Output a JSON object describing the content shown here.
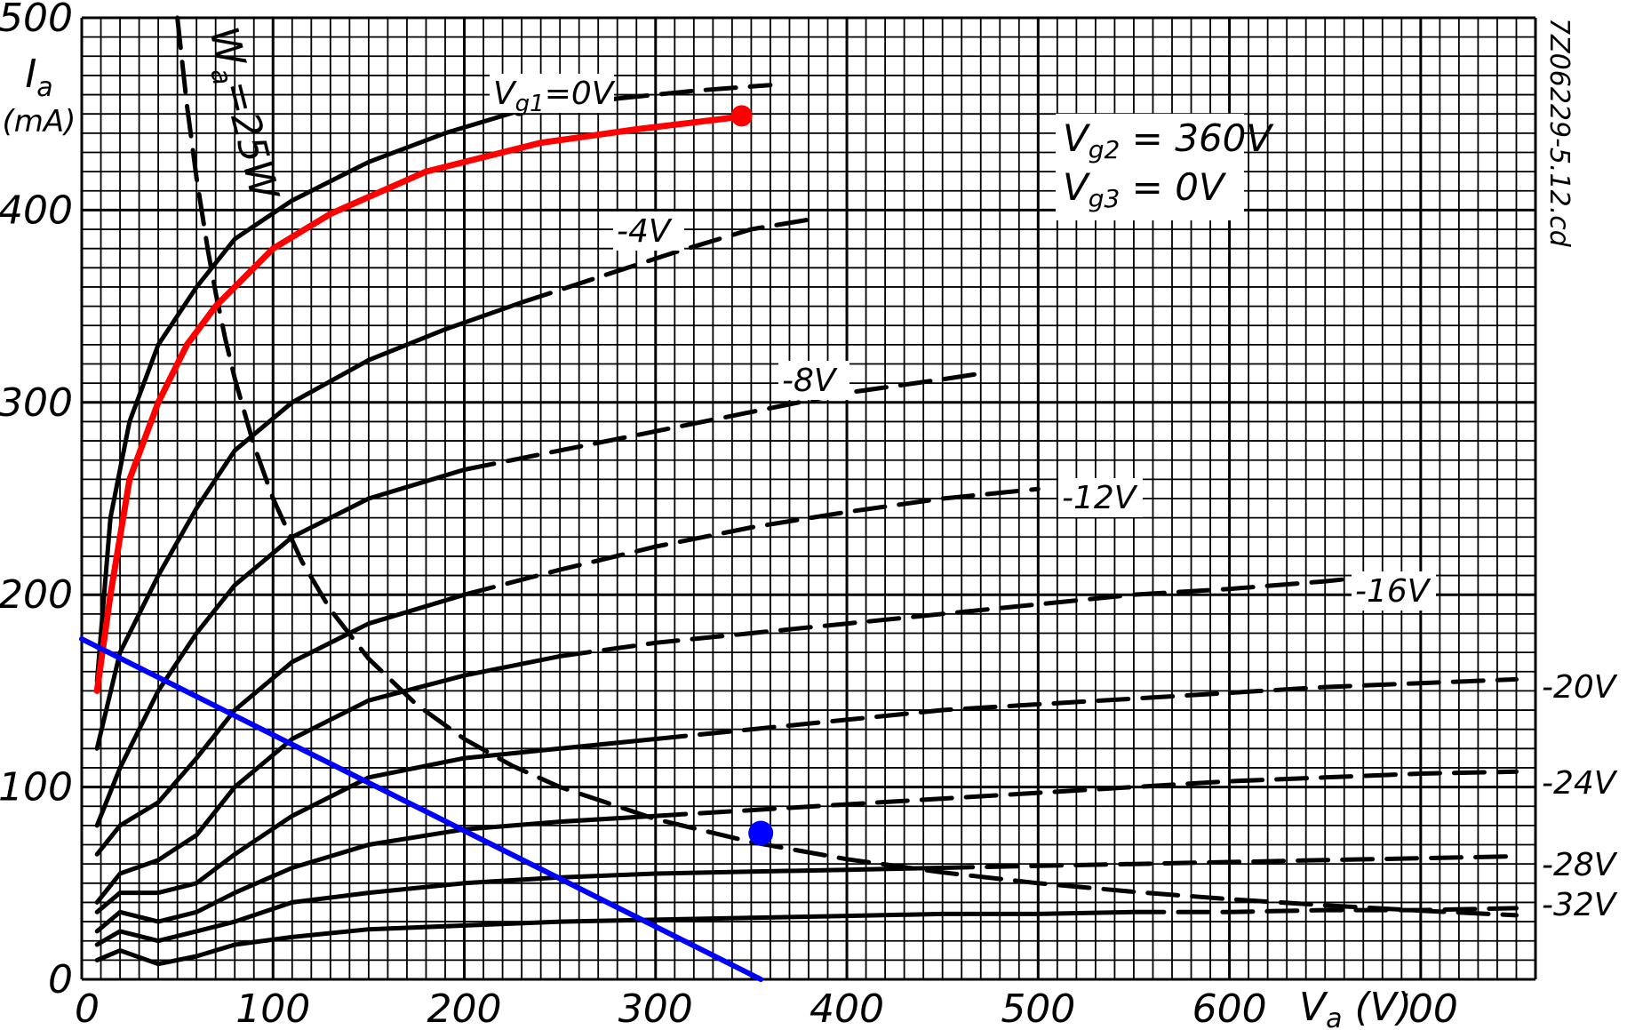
{
  "chart_data": {
    "type": "line",
    "title": "",
    "ylabel": "I_a (mA)",
    "ylabel_sym": "I",
    "ylabel_sub": "a",
    "ylabel_unit": "(mA)",
    "xlabel": "V_a (V)",
    "xlabel_sym": "V",
    "xlabel_sub": "a",
    "xlabel_unit": "(V)",
    "xlim": [
      0,
      760
    ],
    "ylim": [
      0,
      500
    ],
    "x_ticks": [
      "0",
      "100",
      "200",
      "300",
      "400",
      "500",
      "600",
      "700"
    ],
    "y_ticks": [
      "0",
      "100",
      "200",
      "300",
      "400",
      "500"
    ],
    "grid": true,
    "code": "7Z06229-5.12.cd",
    "conditions": [
      "V_g2 = 360V",
      "V_g3 = 0V"
    ],
    "series": [
      {
        "name": "V_g1=0V",
        "label": "V_g1=0V",
        "dash_from": 280,
        "x": [
          8,
          15,
          25,
          40,
          60,
          80,
          110,
          150,
          190,
          230,
          260,
          280,
          320,
          360
        ],
        "y": [
          155,
          240,
          290,
          330,
          360,
          385,
          405,
          425,
          440,
          452,
          455,
          458,
          462,
          465
        ]
      },
      {
        "name": "-4V",
        "label": "-4V",
        "dash_from": 230,
        "x": [
          8,
          20,
          40,
          60,
          80,
          110,
          150,
          190,
          230,
          270,
          310,
          350,
          380
        ],
        "y": [
          120,
          170,
          210,
          245,
          275,
          300,
          322,
          338,
          352,
          365,
          378,
          390,
          395
        ]
      },
      {
        "name": "-8V",
        "label": "-8V",
        "dash_from": 200,
        "x": [
          8,
          20,
          40,
          60,
          80,
          110,
          150,
          200,
          250,
          300,
          350,
          400,
          450,
          470
        ],
        "y": [
          80,
          110,
          150,
          180,
          205,
          230,
          250,
          265,
          275,
          285,
          295,
          305,
          312,
          315
        ]
      },
      {
        "name": "-12V",
        "label": "-12V",
        "dash_from": 200,
        "x": [
          8,
          20,
          40,
          60,
          80,
          110,
          150,
          200,
          250,
          300,
          350,
          400,
          450,
          500
        ],
        "y": [
          65,
          80,
          92,
          115,
          140,
          165,
          185,
          200,
          213,
          225,
          235,
          243,
          250,
          255
        ]
      },
      {
        "name": "-16V",
        "label": "-16V",
        "dash_from": 250,
        "x": [
          8,
          20,
          40,
          60,
          80,
          110,
          150,
          200,
          250,
          300,
          350,
          400,
          450,
          500,
          550,
          600,
          650,
          660
        ],
        "y": [
          40,
          55,
          62,
          75,
          100,
          125,
          145,
          158,
          168,
          175,
          180,
          185,
          190,
          195,
          200,
          203,
          207,
          208
        ]
      },
      {
        "name": "-20V",
        "label": "-20V",
        "dash_from": 300,
        "x": [
          8,
          20,
          40,
          60,
          80,
          110,
          150,
          200,
          250,
          300,
          350,
          400,
          450,
          500,
          550,
          600,
          650,
          700,
          750
        ],
        "y": [
          35,
          45,
          45,
          50,
          65,
          85,
          105,
          115,
          120,
          125,
          130,
          135,
          140,
          143,
          146,
          149,
          152,
          154,
          156
        ]
      },
      {
        "name": "-24V",
        "label": "-24V",
        "dash_from": 300,
        "x": [
          8,
          20,
          40,
          60,
          80,
          110,
          150,
          200,
          250,
          300,
          350,
          400,
          450,
          500,
          550,
          600,
          650,
          700,
          750
        ],
        "y": [
          25,
          35,
          30,
          35,
          45,
          58,
          70,
          78,
          82,
          85,
          88,
          91,
          94,
          97,
          100,
          103,
          105,
          107,
          108
        ]
      },
      {
        "name": "-28V",
        "label": "-28V",
        "dash_from": 450,
        "x": [
          8,
          20,
          40,
          60,
          80,
          110,
          150,
          200,
          250,
          300,
          350,
          400,
          450,
          500,
          550,
          600,
          650,
          700,
          750
        ],
        "y": [
          18,
          25,
          20,
          25,
          30,
          40,
          45,
          50,
          53,
          55,
          56,
          57,
          58,
          59,
          60,
          61,
          62,
          63,
          64
        ]
      },
      {
        "name": "-32V",
        "label": "-32V",
        "dash_from": 560,
        "x": [
          8,
          20,
          40,
          60,
          80,
          110,
          150,
          200,
          250,
          300,
          350,
          400,
          450,
          500,
          550,
          600,
          650,
          700,
          750
        ],
        "y": [
          10,
          15,
          8,
          12,
          18,
          22,
          26,
          28,
          30,
          31,
          32,
          33,
          34,
          34,
          35,
          35,
          36,
          36,
          37
        ]
      }
    ],
    "power_limit": {
      "label": "W_a=25W",
      "label_sym": "W",
      "label_sub": "a",
      "label_rest": "=25W",
      "x": [
        50,
        55,
        60,
        66,
        70,
        75,
        80,
        90,
        100,
        115,
        130,
        150,
        175,
        200,
        225,
        250,
        300,
        350,
        400,
        450,
        500,
        550,
        600,
        650,
        700,
        750
      ],
      "y": [
        500,
        454.5,
        416.7,
        378.8,
        357.1,
        333.3,
        312.5,
        277.8,
        250,
        217.4,
        192.3,
        166.7,
        142.9,
        125,
        111.1,
        100,
        83.3,
        71.4,
        62.5,
        55.6,
        50,
        45.5,
        41.7,
        38.5,
        35.7,
        33.3
      ]
    },
    "red_line": {
      "x": [
        8,
        15,
        25,
        40,
        55,
        70,
        80,
        100,
        130,
        180,
        240,
        290,
        340,
        345
      ],
      "y": [
        150,
        200,
        260,
        300,
        330,
        350,
        360,
        380,
        398,
        420,
        435,
        442,
        448,
        449
      ]
    },
    "red_point": {
      "x": 345,
      "y": 449
    },
    "blue_line": {
      "x": [
        0,
        355
      ],
      "y": [
        177,
        0
      ]
    },
    "blue_point": {
      "x": 355,
      "y": 76
    },
    "colors": {
      "red": "#ff0000",
      "blue": "#0000ff",
      "ink": "#000000"
    }
  }
}
